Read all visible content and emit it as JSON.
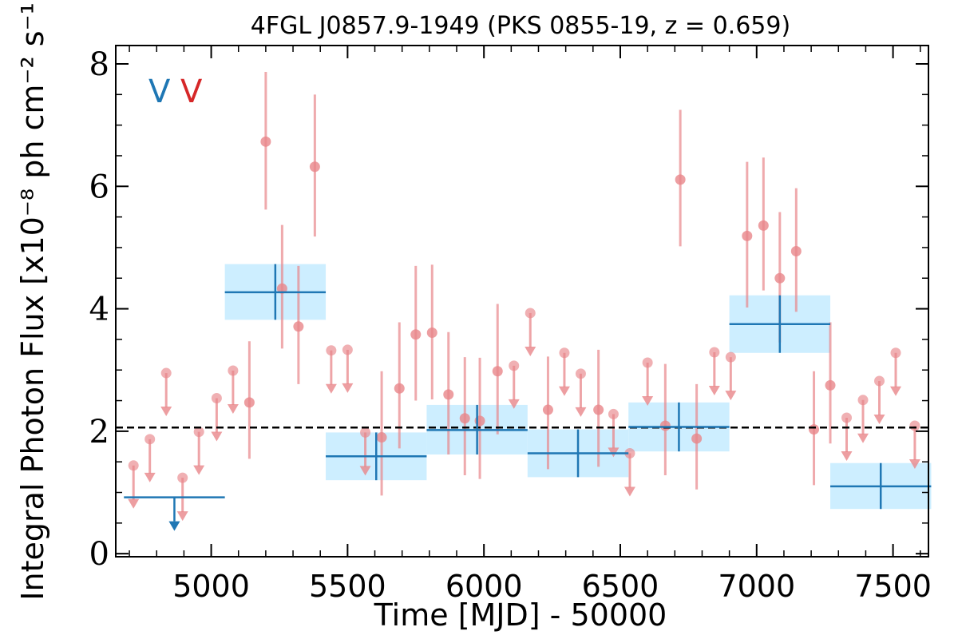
{
  "chart_data": {
    "type": "scatter",
    "title": "4FGL J0857.9-1949 (PKS 0855-19, z = 0.659)",
    "xlabel": "Time [MJD] - 50000",
    "ylabel": "Integral Photon Flux [x10⁻⁸ ph cm⁻² s⁻¹]",
    "xlim": [
      4650,
      7630
    ],
    "ylim": [
      -0.05,
      8.3
    ],
    "x_ticks": [
      5000,
      5500,
      6000,
      6500,
      7000,
      7500
    ],
    "y_ticks": [
      0,
      2,
      4,
      6,
      8
    ],
    "grid": false,
    "legend": {
      "placement": "top-left",
      "entries": [
        {
          "label": "V",
          "color": "#1f77b4"
        },
        {
          "label": "V",
          "color": "#d62728"
        }
      ]
    },
    "reference_line": {
      "y": 2.06,
      "style": "dashed",
      "color": "#000000"
    },
    "colors": {
      "short_bins": "#e8868a",
      "long_bins": "#1f77b4",
      "long_bin_band": "#cdeeff"
    },
    "series": [
      {
        "bin_type": "short",
        "detections": [
          {
            "x": 5140,
            "y": 2.47,
            "y_low": 1.55,
            "y_high": 3.47
          },
          {
            "x": 5200,
            "y": 6.73,
            "y_low": 5.62,
            "y_high": 7.87
          },
          {
            "x": 5260,
            "y": 4.33,
            "y_low": 3.35,
            "y_high": 5.37
          },
          {
            "x": 5320,
            "y": 3.71,
            "y_low": 2.77,
            "y_high": 4.7
          },
          {
            "x": 5380,
            "y": 6.32,
            "y_low": 5.18,
            "y_high": 7.5
          },
          {
            "x": 5625,
            "y": 1.9,
            "y_low": 0.95,
            "y_high": 2.98
          },
          {
            "x": 5690,
            "y": 2.7,
            "y_low": 1.72,
            "y_high": 3.78
          },
          {
            "x": 5750,
            "y": 3.58,
            "y_low": 2.5,
            "y_high": 4.7
          },
          {
            "x": 5810,
            "y": 3.61,
            "y_low": 2.52,
            "y_high": 4.72
          },
          {
            "x": 5870,
            "y": 2.6,
            "y_low": 1.62,
            "y_high": 3.62
          },
          {
            "x": 5930,
            "y": 2.21,
            "y_low": 1.28,
            "y_high": 3.21
          },
          {
            "x": 5985,
            "y": 2.17,
            "y_low": 1.22,
            "y_high": 3.2
          },
          {
            "x": 6050,
            "y": 2.98,
            "y_low": 1.95,
            "y_high": 4.08
          },
          {
            "x": 6235,
            "y": 2.35,
            "y_low": 1.38,
            "y_high": 3.22
          },
          {
            "x": 6420,
            "y": 2.35,
            "y_low": 1.42,
            "y_high": 3.33
          },
          {
            "x": 6665,
            "y": 2.09,
            "y_low": 1.28,
            "y_high": 3.1
          },
          {
            "x": 6720,
            "y": 6.11,
            "y_low": 5.02,
            "y_high": 7.25
          },
          {
            "x": 6780,
            "y": 1.88,
            "y_low": 1.05,
            "y_high": 2.77
          },
          {
            "x": 6965,
            "y": 5.19,
            "y_low": 4.02,
            "y_high": 6.4
          },
          {
            "x": 7025,
            "y": 5.36,
            "y_low": 4.3,
            "y_high": 6.47
          },
          {
            "x": 7085,
            "y": 4.5,
            "y_low": 3.45,
            "y_high": 5.58
          },
          {
            "x": 7145,
            "y": 4.94,
            "y_low": 3.95,
            "y_high": 5.97
          },
          {
            "x": 7210,
            "y": 2.03,
            "y_low": 1.12,
            "y_high": 2.98
          },
          {
            "x": 7270,
            "y": 2.75,
            "y_low": 1.8,
            "y_high": 3.78
          }
        ],
        "upper_limits": [
          {
            "x": 4715,
            "y": 1.44
          },
          {
            "x": 4775,
            "y": 1.87
          },
          {
            "x": 4835,
            "y": 2.95
          },
          {
            "x": 4895,
            "y": 1.24
          },
          {
            "x": 4955,
            "y": 1.99
          },
          {
            "x": 5020,
            "y": 2.54
          },
          {
            "x": 5080,
            "y": 2.99
          },
          {
            "x": 5440,
            "y": 3.32
          },
          {
            "x": 5500,
            "y": 3.33
          },
          {
            "x": 5565,
            "y": 1.98
          },
          {
            "x": 6110,
            "y": 3.07
          },
          {
            "x": 6170,
            "y": 3.93
          },
          {
            "x": 6295,
            "y": 3.28
          },
          {
            "x": 6355,
            "y": 2.94
          },
          {
            "x": 6475,
            "y": 2.28
          },
          {
            "x": 6535,
            "y": 1.64
          },
          {
            "x": 6600,
            "y": 3.12
          },
          {
            "x": 6845,
            "y": 3.29
          },
          {
            "x": 6905,
            "y": 3.21
          },
          {
            "x": 7330,
            "y": 2.22
          },
          {
            "x": 7390,
            "y": 2.51
          },
          {
            "x": 7450,
            "y": 2.82
          },
          {
            "x": 7510,
            "y": 3.28
          },
          {
            "x": 7580,
            "y": 2.09
          }
        ]
      },
      {
        "bin_type": "long",
        "upper_limits": [
          {
            "x_start": 4680,
            "x_end": 5050,
            "x_center": 4865,
            "y": 0.92
          }
        ],
        "detections": [
          {
            "x_start": 5050,
            "x_end": 5420,
            "x_center": 5235,
            "y": 4.27,
            "y_low": 3.82,
            "y_high": 4.73
          },
          {
            "x_start": 5420,
            "x_end": 5790,
            "x_center": 5605,
            "y": 1.59,
            "y_low": 1.2,
            "y_high": 1.98
          },
          {
            "x_start": 5790,
            "x_end": 6160,
            "x_center": 5975,
            "y": 2.02,
            "y_low": 1.62,
            "y_high": 2.43
          },
          {
            "x_start": 6160,
            "x_end": 6530,
            "x_center": 6345,
            "y": 1.64,
            "y_low": 1.25,
            "y_high": 2.03
          },
          {
            "x_start": 6530,
            "x_end": 6900,
            "x_center": 6715,
            "y": 2.07,
            "y_low": 1.67,
            "y_high": 2.47
          },
          {
            "x_start": 6900,
            "x_end": 7270,
            "x_center": 7085,
            "y": 3.75,
            "y_low": 3.28,
            "y_high": 4.22
          },
          {
            "x_start": 7270,
            "x_end": 7640,
            "x_center": 7455,
            "y": 1.1,
            "y_low": 0.73,
            "y_high": 1.48
          }
        ]
      }
    ]
  }
}
